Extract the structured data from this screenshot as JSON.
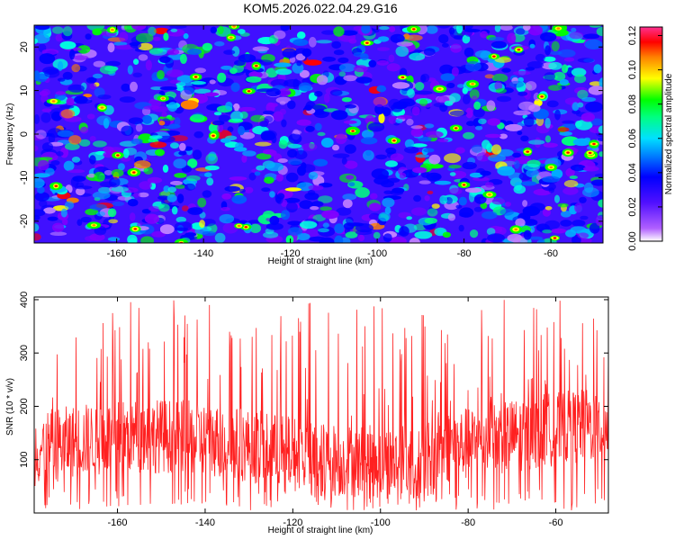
{
  "figure": {
    "title": "KOM5.2026.022.04.29.G16"
  },
  "chart_data": [
    {
      "type": "heatmap",
      "xlabel": "Height of straight line (km)",
      "ylabel": "Frequency (Hz)",
      "xlim": [
        -179,
        -48
      ],
      "ylim": [
        -25,
        25
      ],
      "xticks": [
        -160,
        -140,
        -120,
        -100,
        -80,
        -60
      ],
      "yticks": [
        -20,
        -10,
        0,
        10,
        20
      ],
      "colorbar": {
        "label": "Normalized spectral amplitude",
        "range": [
          0.0,
          0.125
        ],
        "ticks": [
          "0.00",
          "0.02",
          "0.04",
          "0.06",
          "0.08",
          "0.10",
          "0.12"
        ],
        "colors": [
          "#ffffff",
          "#8000ff",
          "#0000ff",
          "#00a0ff",
          "#00ff80",
          "#00ff00",
          "#ffff00",
          "#ff8000",
          "#ff0000",
          "#ff40a0"
        ]
      },
      "description_values": {
        "background_level": 0.02,
        "typical_blob_level": 0.05,
        "peak_level": 0.12
      }
    },
    {
      "type": "line",
      "xlabel": "Height of straight line (km)",
      "ylabel": "SNR (10 * v/v)",
      "xlim": [
        -179,
        -48
      ],
      "ylim": [
        0,
        405
      ],
      "xticks": [
        -160,
        -140,
        -120,
        -100,
        -80,
        -60
      ],
      "yticks": [
        100,
        200,
        300,
        400
      ],
      "color": "#ff2020",
      "series": [
        {
          "name": "SNR",
          "x_start": -179,
          "x_end": -48,
          "baseline_level": 120,
          "noise_min": 5,
          "spike_max": 400
        }
      ]
    }
  ]
}
